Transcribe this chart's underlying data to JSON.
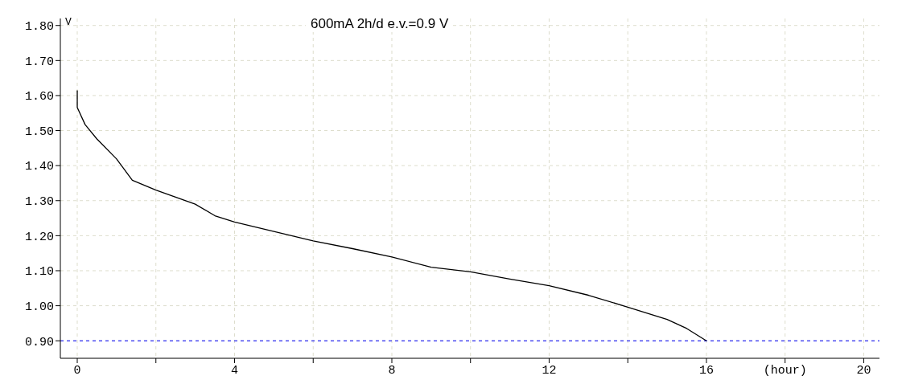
{
  "chart_data": {
    "type": "line",
    "title": "600mA 2h/d e.v.=0.9 V",
    "ylabel": "V",
    "x": [
      0,
      0,
      0.2,
      0.5,
      1,
      1.4,
      2,
      2.5,
      3,
      3.5,
      4,
      5,
      6,
      7,
      8,
      9,
      10,
      11,
      12,
      13,
      14,
      15,
      15.5,
      16
    ],
    "series": [
      {
        "color": "#000000",
        "values": [
          1.615,
          1.566,
          1.517,
          1.476,
          1.419,
          1.358,
          1.33,
          1.31,
          1.29,
          1.257,
          1.239,
          1.212,
          1.185,
          1.163,
          1.139,
          1.11,
          1.097,
          1.076,
          1.057,
          1.03,
          0.996,
          0.961,
          0.935,
          0.9
        ]
      }
    ],
    "xlim": [
      -0.43,
      20.4
    ],
    "xticks": [
      0,
      {
        "value": 2,
        "label": null
      },
      4,
      {
        "value": 6,
        "label": null
      },
      8,
      {
        "value": 10,
        "label": null
      },
      12,
      {
        "value": 14,
        "label": null
      },
      16,
      {
        "value": 18,
        "label": "(hour)"
      },
      20
    ],
    "ylim": [
      0.85,
      1.82
    ],
    "yticks": [
      {
        "value": 0.9,
        "label": "0.90"
      },
      {
        "value": 1.0,
        "label": "1.00"
      },
      {
        "value": 1.1,
        "label": "1.10"
      },
      {
        "value": 1.2,
        "label": "1.20"
      },
      {
        "value": 1.3,
        "label": "1.30"
      },
      {
        "value": 1.4,
        "label": "1.40"
      },
      {
        "value": 1.5,
        "label": "1.50"
      },
      {
        "value": 1.6,
        "label": "1.60"
      },
      {
        "value": 1.7,
        "label": "1.70"
      },
      {
        "value": 1.8,
        "label": "1.80"
      }
    ],
    "ref_lines": [
      {
        "axis": "y",
        "value": 0.9,
        "color": "#0000ff",
        "line_style": "dashed"
      }
    ],
    "grid": true,
    "marker": "none",
    "line_style": "solid"
  }
}
